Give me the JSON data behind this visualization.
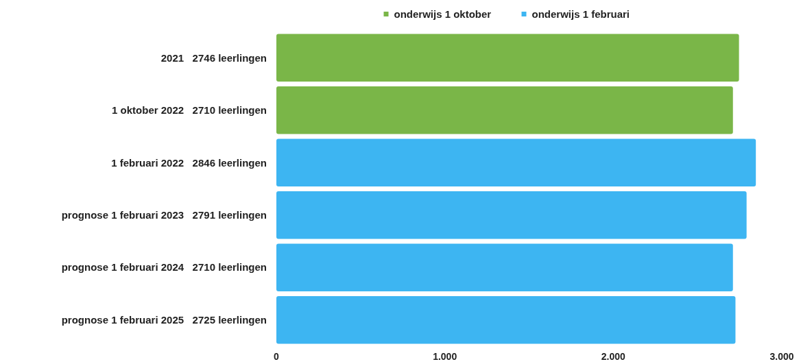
{
  "chart_data": {
    "type": "bar",
    "orientation": "horizontal",
    "categories": [
      "2021   2746 leerlingen",
      "1 oktober 2022   2710 leerlingen",
      "1 februari 2022   2846 leerlingen",
      "prognose 1 februari 2023   2791 leerlingen",
      "prognose 1 februari 2024   2710 leerlingen",
      "prognose 1 februari 2025   2725 leerlingen"
    ],
    "series": [
      {
        "name": "onderwijs 1 oktober",
        "color": "#7ab648",
        "values": [
          2746,
          2710,
          null,
          null,
          null,
          null
        ]
      },
      {
        "name": "onderwijs 1 februari",
        "color": "#3db5f2",
        "values": [
          null,
          null,
          2846,
          2791,
          2710,
          2725
        ]
      }
    ],
    "xlim": [
      0,
      3000
    ],
    "xticks": [
      0,
      {
        "value": 1000,
        "label": "1.000"
      },
      {
        "value": 2000,
        "label": "2.000"
      },
      {
        "value": 3000,
        "label": "3.000"
      }
    ],
    "legend": "top",
    "grid": false
  }
}
